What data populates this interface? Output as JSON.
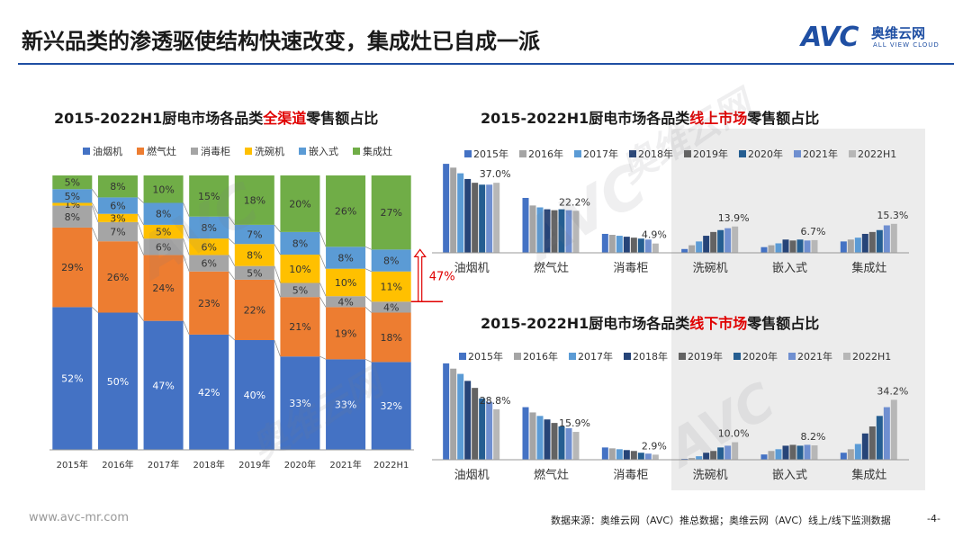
{
  "page": {
    "title": "新兴品类的渗透驱使结构快速改变，集成灶已自成一派",
    "logo_text": "AVC",
    "logo_cn": "奥维云网",
    "logo_en": "ALL VIEW CLOUD",
    "source": "数据来源：奥维云网（AVC）推总数据；奥维云网（AVC）线上/线下监测数据",
    "page_number": "-4-",
    "url": "www.avc-mr.com",
    "watermark_cn": "奥维云网",
    "watermark_en": "ALL VIEW CLOUD",
    "accent_color": "#1f4fa3",
    "highlight_color": "#e00000"
  },
  "chart_data": [
    {
      "id": "all",
      "type": "bar",
      "stacked": true,
      "title_pre": "2015-2022H1厨电市场各品类",
      "title_hl": "全渠道",
      "title_post": "零售额占比",
      "categories": [
        "2015年",
        "2016年",
        "2017年",
        "2018年",
        "2019年",
        "2020年",
        "2021年",
        "2022H1"
      ],
      "series": [
        {
          "name": "油烟机",
          "color": "#4472c4",
          "values": [
            52,
            50,
            47,
            42,
            40,
            33,
            33,
            32
          ]
        },
        {
          "name": "燃气灶",
          "color": "#ed7d31",
          "values": [
            29,
            26,
            24,
            23,
            22,
            21,
            19,
            18
          ]
        },
        {
          "name": "消毒柜",
          "color": "#a5a5a5",
          "values": [
            8,
            7,
            6,
            6,
            5,
            5,
            4,
            4
          ]
        },
        {
          "name": "洗碗机",
          "color": "#ffc000",
          "values": [
            1,
            3,
            5,
            6,
            8,
            10,
            10,
            11
          ]
        },
        {
          "name": "嵌入式",
          "color": "#5b9bd5",
          "values": [
            5,
            6,
            8,
            8,
            7,
            8,
            8,
            8
          ]
        },
        {
          "name": "集成灶",
          "color": "#70ad47",
          "values": [
            5,
            8,
            10,
            15,
            18,
            20,
            26,
            27
          ]
        }
      ],
      "labels": [
        [
          "52%",
          "50%",
          "47%",
          "42%",
          "40%",
          "33%",
          "33%",
          "32%"
        ],
        [
          "29%",
          "26%",
          "24%",
          "23%",
          "22%",
          "21%",
          "19%",
          "18%"
        ],
        [
          "8%",
          "7%",
          "6%",
          "6%",
          "5%",
          "5%",
          "4%",
          "4%"
        ],
        [
          "1%",
          "3%",
          "5%",
          "6%",
          "8%",
          "10%",
          "10%",
          "11%"
        ],
        [
          "5%",
          "6%",
          "8%",
          "8%",
          "7%",
          "8%",
          "8%",
          "8%"
        ],
        [
          "5%",
          "8%",
          "10%",
          "15%",
          "18%",
          "20%",
          "26%",
          "27%"
        ]
      ],
      "annotation": "47%",
      "ylim": [
        0,
        100
      ]
    },
    {
      "id": "online",
      "type": "bar",
      "title_pre": "2015-2022H1厨电市场各品类",
      "title_hl": "线上市场",
      "title_post": "零售额占比",
      "categories": [
        "油烟机",
        "燃气灶",
        "消毒柜",
        "洗碗机",
        "嵌入式",
        "集成灶"
      ],
      "legend": [
        "2015年",
        "2016年",
        "2017年",
        "2018年",
        "2019年",
        "2020年",
        "2021年",
        "2022H1"
      ],
      "colors": [
        "#4472c4",
        "#a5a5a5",
        "#5b9bd5",
        "#264478",
        "#636363",
        "#255e91",
        "#6f8fd0",
        "#b7b7b7"
      ],
      "series": [
        {
          "name": "2015年",
          "values": [
            47,
            29,
            10,
            2,
            3,
            6
          ]
        },
        {
          "name": "2016年",
          "values": [
            45,
            25,
            9.5,
            4,
            4,
            7
          ]
        },
        {
          "name": "2017年",
          "values": [
            42,
            24,
            9,
            6,
            5,
            8
          ]
        },
        {
          "name": "2018年",
          "values": [
            39,
            23,
            8.5,
            9,
            7,
            10
          ]
        },
        {
          "name": "2019年",
          "values": [
            37,
            22.5,
            8,
            11,
            6.5,
            11
          ]
        },
        {
          "name": "2020年",
          "values": [
            36,
            23,
            7.5,
            12,
            7,
            12
          ]
        },
        {
          "name": "2021年",
          "values": [
            36,
            22.5,
            7,
            13,
            6.5,
            14.5
          ]
        },
        {
          "name": "2022H1",
          "values": [
            37.0,
            22.2,
            4.9,
            13.9,
            6.7,
            15.3
          ]
        }
      ],
      "value_labels": [
        "37.0%",
        "22.2%",
        "4.9%",
        "13.9%",
        "6.7%",
        "15.3%"
      ],
      "ylim": [
        0,
        48
      ]
    },
    {
      "id": "offline",
      "type": "bar",
      "title_pre": "2015-2022H1厨电市场各品类",
      "title_hl": "线下市场",
      "title_post": "零售额占比",
      "categories": [
        "油烟机",
        "燃气灶",
        "消毒柜",
        "洗碗机",
        "嵌入式",
        "集成灶"
      ],
      "legend": [
        "2015年",
        "2016年",
        "2017年",
        "2018年",
        "2019年",
        "2020年",
        "2021年",
        "2022H1"
      ],
      "colors": [
        "#4472c4",
        "#a5a5a5",
        "#5b9bd5",
        "#264478",
        "#636363",
        "#255e91",
        "#6f8fd0",
        "#b7b7b7"
      ],
      "series": [
        {
          "name": "2015年",
          "values": [
            55,
            30,
            7,
            0.5,
            3,
            4
          ]
        },
        {
          "name": "2016年",
          "values": [
            52,
            27,
            6.5,
            1,
            5,
            6
          ]
        },
        {
          "name": "2017年",
          "values": [
            49,
            25,
            6,
            2,
            6,
            9
          ]
        },
        {
          "name": "2018年",
          "values": [
            45,
            23,
            5.5,
            4,
            8,
            15
          ]
        },
        {
          "name": "2019年",
          "values": [
            41,
            21,
            5,
            5,
            8.5,
            19
          ]
        },
        {
          "name": "2020年",
          "values": [
            35,
            19,
            4,
            7,
            8,
            25
          ]
        },
        {
          "name": "2021年",
          "values": [
            33,
            18,
            3.5,
            8,
            8.5,
            30
          ]
        },
        {
          "name": "2022H1",
          "values": [
            28.8,
            15.9,
            2.9,
            10.0,
            8.2,
            34.2
          ]
        }
      ],
      "value_labels": [
        "28.8%",
        "15.9%",
        "2.9%",
        "10.0%",
        "8.2%",
        "34.2%"
      ],
      "ylim": [
        0,
        57
      ]
    }
  ]
}
